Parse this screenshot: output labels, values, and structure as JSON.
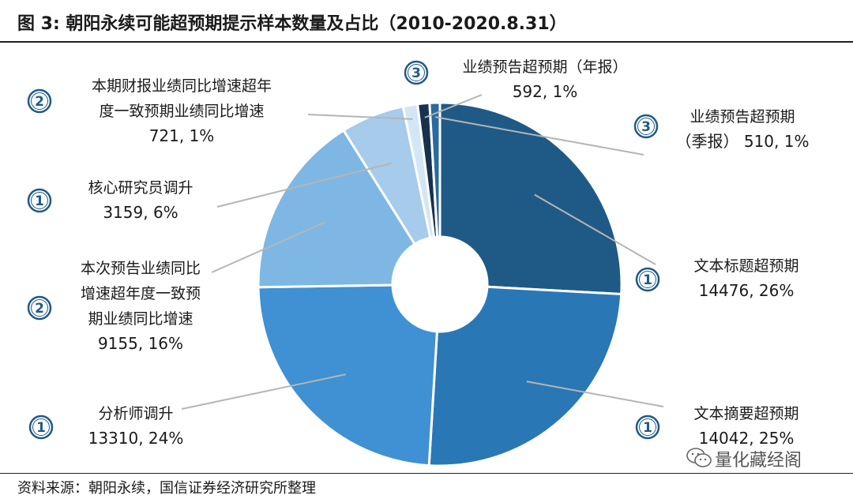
{
  "header": {
    "title": "图 3:  朝阳永续可能超预期提示样本数量及占比（2010-2020.8.31）"
  },
  "footer": {
    "source": "资料来源：朝阳永续，国信证券经济研究所整理"
  },
  "watermark": {
    "text": "量化藏经阁"
  },
  "chart_data": {
    "type": "pie",
    "donut": true,
    "slices": [
      {
        "label": "文本标题超预期",
        "value": 14476,
        "percent": "26%",
        "rank": "1",
        "color": "#1f5a86"
      },
      {
        "label": "文本摘要超预期",
        "value": 14042,
        "percent": "25%",
        "rank": "1",
        "color": "#2a77b6"
      },
      {
        "label": "分析师调升",
        "value": 13310,
        "percent": "24%",
        "rank": "1",
        "color": "#3f91d3"
      },
      {
        "label": "本次预告业绩同比增速超年度一致预期业绩同比增速",
        "value": 9155,
        "percent": "16%",
        "rank": "2",
        "color": "#7eb7e3"
      },
      {
        "label": "核心研究员调升",
        "value": 3159,
        "percent": "6%",
        "rank": "1",
        "color": "#a6cbeb"
      },
      {
        "label": "本期财报业绩同比增速超年度一致预期业绩同比增速",
        "value": 721,
        "percent": "1%",
        "rank": "2",
        "color": "#d3e6f6"
      },
      {
        "label": "业绩预告超预期（年报）",
        "value": 592,
        "percent": "1%",
        "rank": "3",
        "color": "#17324f"
      },
      {
        "label": "业绩预告超预期（季报）",
        "value": 510,
        "percent": "1%",
        "rank": "3",
        "color": "#2a6aa0"
      }
    ],
    "callouts": [
      {
        "lines": [
          "文本标题超预期"
        ],
        "value_text": "14476, 26%"
      },
      {
        "lines": [
          "文本摘要超预期"
        ],
        "value_text": "14042, 25%"
      },
      {
        "lines": [
          "分析师调升"
        ],
        "value_text": "13310, 24%"
      },
      {
        "lines": [
          "本次预告业绩同比",
          "增速超年度一致预",
          "期业绩同比增速"
        ],
        "value_text": "9155, 16%"
      },
      {
        "lines": [
          "核心研究员调升"
        ],
        "value_text": "3159, 6%"
      },
      {
        "lines": [
          "本期财报业绩同比增速超年",
          "度一致预期业绩同比增速"
        ],
        "value_text": "721, 1%"
      },
      {
        "lines": [
          "业绩预告超预期（年报）"
        ],
        "value_text": "592, 1%"
      },
      {
        "lines": [
          "业绩预告超预期"
        ],
        "value_text": "（季报） 510, 1%"
      }
    ]
  }
}
